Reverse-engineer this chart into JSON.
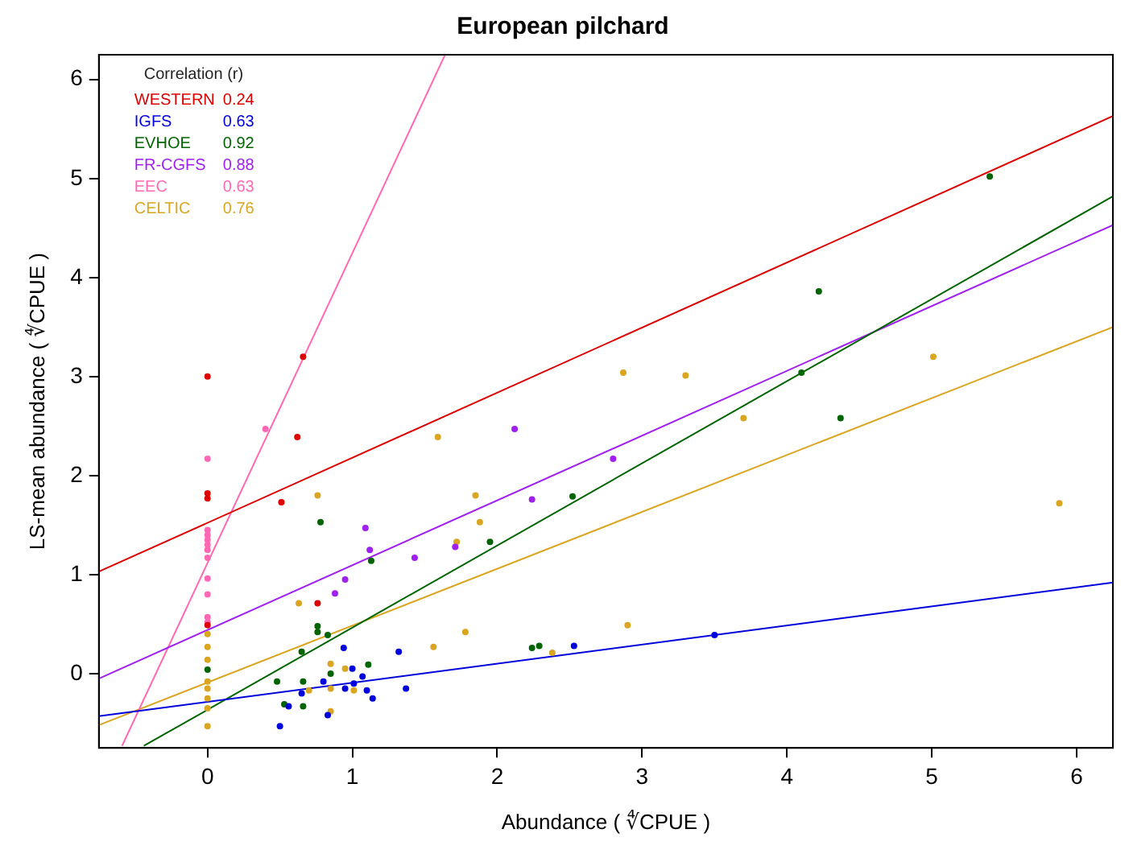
{
  "chart_data": {
    "type": "scatter",
    "title": "European pilchard",
    "xlabel": "Abundance ( ∜CPUE )",
    "ylabel": "LS-mean abundance ( ∜CPUE )",
    "legend_title": "Correlation (r)",
    "legend": "top left",
    "marker": "circle",
    "grid": false,
    "xlim": [
      -0.75,
      6.25
    ],
    "ylim": [
      -0.75,
      6.25
    ],
    "xticks": [
      0,
      1,
      2,
      3,
      4,
      5,
      6
    ],
    "yticks": [
      0,
      1,
      2,
      3,
      4,
      5,
      6
    ],
    "annotations": [
      "0.24",
      "0.63",
      "0.92",
      "0.88",
      "0.63",
      "0.76"
    ],
    "series": [
      {
        "name": "WESTERN",
        "color": "#dd0000",
        "x": [
          0,
          0,
          0,
          0,
          0.66,
          0.62,
          0.51,
          0.76
        ],
        "values": [
          3.0,
          1.82,
          1.77,
          0.49,
          3.2,
          2.39,
          1.73,
          0.71
        ]
      },
      {
        "name": "IGFS",
        "color": "#0000dd",
        "x": [
          0.94,
          1.32,
          1.0,
          1.07,
          0.8,
          1.01,
          0.95,
          1.1,
          1.37,
          0.65,
          1.14,
          0.56,
          0.83,
          0.5,
          2.53,
          3.5
        ],
        "values": [
          0.26,
          0.22,
          0.05,
          -0.03,
          -0.08,
          -0.1,
          -0.15,
          -0.17,
          -0.15,
          -0.2,
          -0.25,
          -0.33,
          -0.42,
          -0.53,
          0.28,
          0.39
        ]
      },
      {
        "name": "EVHOE",
        "color": "#006400",
        "x": [
          5.4,
          4.22,
          4.1,
          4.37,
          2.52,
          1.95,
          2.24,
          2.29,
          0.78,
          1.13,
          0.76,
          0.76,
          0.83,
          0.65,
          0,
          1.11,
          0.85,
          0.48,
          0.66,
          0.53,
          0.66
        ],
        "values": [
          5.02,
          3.86,
          3.04,
          2.58,
          1.79,
          1.33,
          0.26,
          0.28,
          1.53,
          1.14,
          0.48,
          0.42,
          0.39,
          0.22,
          0.04,
          0.09,
          0.0,
          -0.08,
          -0.08,
          -0.31,
          -0.33
        ]
      },
      {
        "name": "FR-CGFS",
        "color": "#a020f0",
        "x": [
          1.09,
          1.12,
          1.43,
          1.71,
          0.95,
          0.88,
          2.12,
          2.8,
          2.24
        ],
        "values": [
          1.47,
          1.25,
          1.17,
          1.28,
          0.95,
          0.81,
          2.47,
          2.17,
          1.76
        ]
      },
      {
        "name": "EEC",
        "color": "#ff69b4",
        "x": [
          0,
          0,
          0,
          0,
          0,
          0,
          0,
          0,
          0,
          0,
          0,
          0.4
        ],
        "values": [
          2.17,
          1.45,
          1.4,
          1.35,
          1.3,
          1.25,
          1.17,
          0.96,
          0.8,
          0.57,
          0.52,
          2.47
        ]
      },
      {
        "name": "CELTIC",
        "color": "#daa520",
        "x": [
          0,
          0,
          0,
          0,
          0,
          0,
          0,
          0,
          1.59,
          0.76,
          0.63,
          1.72,
          1.78,
          1.56,
          0.85,
          0.95,
          1.01,
          0.7,
          0.85,
          0.85,
          1.85,
          1.88,
          2.9,
          2.38,
          3.7,
          2.87,
          3.3,
          5.01,
          5.88
        ],
        "values": [
          0.4,
          0.27,
          0.14,
          -0.08,
          -0.15,
          -0.25,
          -0.35,
          -0.53,
          2.39,
          1.8,
          0.71,
          1.33,
          0.42,
          0.27,
          0.1,
          0.05,
          -0.17,
          -0.17,
          -0.15,
          -0.38,
          1.8,
          1.53,
          0.49,
          0.21,
          2.58,
          3.04,
          3.01,
          3.2,
          1.72
        ]
      },
      {
        "type": "line",
        "marker": "none",
        "color": "#dd0000",
        "x": [
          -0.75,
          6.25
        ],
        "values": [
          1.03,
          5.63
        ]
      },
      {
        "type": "line",
        "marker": "none",
        "color": "#0000dd",
        "x": [
          -0.75,
          6.25
        ],
        "values": [
          -0.43,
          0.92
        ]
      },
      {
        "type": "line",
        "marker": "none",
        "color": "#006400",
        "x": [
          -0.44,
          6.25
        ],
        "values": [
          -0.73,
          4.82
        ]
      },
      {
        "type": "line",
        "marker": "none",
        "color": "#a020f0",
        "x": [
          -0.75,
          6.25
        ],
        "values": [
          -0.05,
          4.53
        ]
      },
      {
        "type": "line",
        "marker": "none",
        "color": "#ff69b4",
        "x": [
          -0.59,
          1.64
        ],
        "values": [
          -0.73,
          6.25
        ]
      },
      {
        "type": "line",
        "marker": "none",
        "color": "#daa520",
        "x": [
          -0.75,
          6.25
        ],
        "values": [
          -0.52,
          3.5
        ]
      }
    ]
  }
}
